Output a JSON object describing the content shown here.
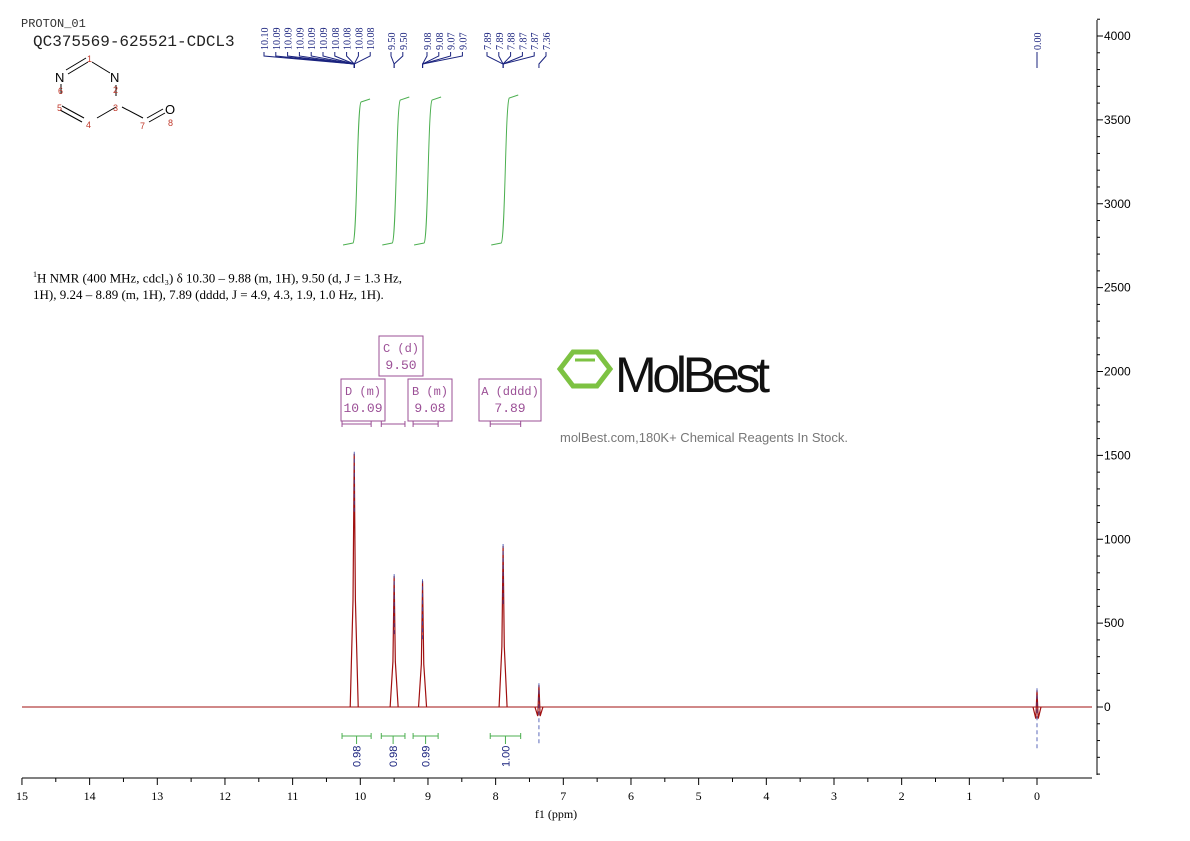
{
  "header": {
    "experiment": "PROTON_01",
    "sample": "QC375569-625521-CDCL3"
  },
  "structure": {
    "atoms": [
      {
        "label": "N",
        "number": "1"
      },
      {
        "label": "N",
        "number": "2"
      },
      {
        "label": "",
        "number": "3"
      },
      {
        "label": "",
        "number": "4"
      },
      {
        "label": "",
        "number": "5"
      },
      {
        "label": "N",
        "number": "6"
      },
      {
        "label": "",
        "number": "7"
      },
      {
        "label": "O",
        "number": "8"
      }
    ]
  },
  "description": {
    "sup": "1",
    "line1": "H NMR (400 MHz, cdcl₃) δ 10.30 – 9.88 (m, 1H), 9.50 (d, J = 1.3 Hz,",
    "line2": "1H), 9.24 – 8.89 (m, 1H), 7.89 (dddd, J = 4.9, 4.3, 1.9, 1.0 Hz, 1H)."
  },
  "watermark": {
    "brand": "MolBest",
    "tagline": "molBest.com,180K+ Chemical Reagents In Stock.",
    "color": "#7dc242"
  },
  "chart_data": {
    "type": "line",
    "xlabel": "f1 (ppm)",
    "xlim": [
      15,
      -0.8
    ],
    "ylim": [
      -400,
      4100
    ],
    "x_reversed": true,
    "x_ticks": [
      "15",
      "14",
      "13",
      "12",
      "11",
      "10",
      "9",
      "8",
      "7",
      "6",
      "5",
      "4",
      "3",
      "2",
      "1",
      "0"
    ],
    "y_ticks": [
      "4000",
      "3500",
      "3000",
      "2500",
      "2000",
      "1500",
      "1000",
      "500",
      "0"
    ],
    "y_axis_side": "right",
    "grid": false,
    "spectrum_color": "#a01010",
    "peaks": [
      {
        "ppm": 10.09,
        "intensity": 1510
      },
      {
        "ppm": 9.5,
        "intensity": 780
      },
      {
        "ppm": 9.08,
        "intensity": 750
      },
      {
        "ppm": 7.89,
        "intensity": 960
      },
      {
        "ppm": 7.36,
        "intensity": 130
      },
      {
        "ppm": 0.0,
        "intensity": 100
      }
    ],
    "peak_labels": [
      {
        "group": "10.09",
        "labels": [
          "10.10",
          "10.09",
          "10.09",
          "10.09",
          "10.09",
          "10.09",
          "10.08",
          "10.08",
          "10.08",
          "10.08"
        ]
      },
      {
        "group": "9.50",
        "labels": [
          "9.50",
          "9.50"
        ]
      },
      {
        "group": "9.08",
        "labels": [
          "9.08",
          "9.08",
          "9.07",
          "9.07"
        ]
      },
      {
        "group": "7.89",
        "labels": [
          "7.89",
          "7.89",
          "7.88",
          "7.87",
          "7.87"
        ]
      },
      {
        "group": "7.36",
        "labels": [
          "7.36"
        ]
      },
      {
        "group": "0.00",
        "labels": [
          "0.00"
        ]
      }
    ],
    "multiplets": [
      {
        "letter": "D",
        "type": "(m)",
        "shift": "10.09",
        "range": [
          10.27,
          9.84
        ]
      },
      {
        "letter": "C",
        "type": "(d)",
        "shift": "9.50",
        "range": [
          9.69,
          9.34
        ]
      },
      {
        "letter": "B",
        "type": "(m)",
        "shift": "9.08",
        "range": [
          9.22,
          8.85
        ]
      },
      {
        "letter": "A",
        "type": "(dddd)",
        "shift": "7.89",
        "range": [
          8.08,
          7.63
        ]
      }
    ],
    "integrals": [
      {
        "range": [
          10.27,
          9.84
        ],
        "value": "0.98"
      },
      {
        "range": [
          9.69,
          9.34
        ],
        "value": "0.98"
      },
      {
        "range": [
          9.22,
          8.85
        ],
        "value": "0.99"
      },
      {
        "range": [
          8.08,
          7.63
        ],
        "value": "1.00"
      }
    ]
  }
}
